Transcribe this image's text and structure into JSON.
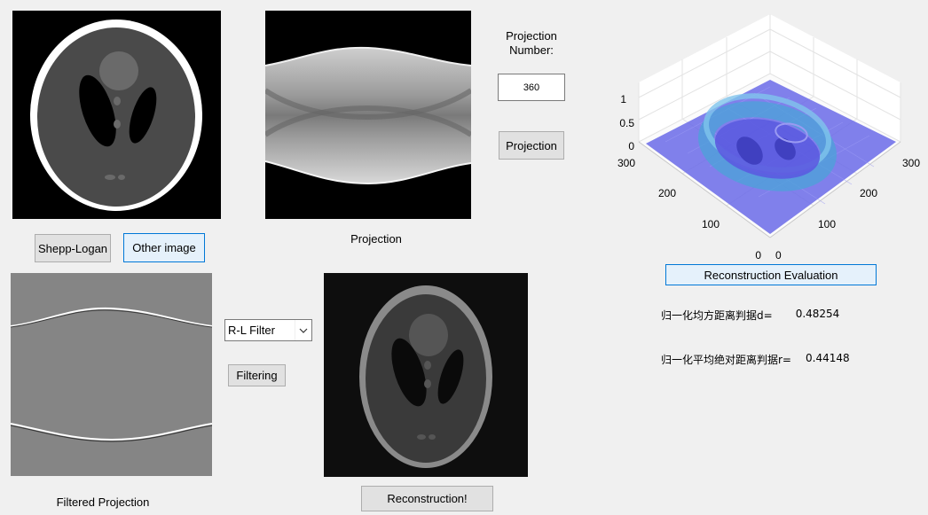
{
  "phantom": {
    "shepp_logan_button": "Shepp-Logan",
    "other_image_button": "Other image"
  },
  "projection": {
    "caption": "Projection",
    "number_label": "Projection\nNumber:",
    "number_value": "360",
    "projection_button": "Projection"
  },
  "filtering": {
    "filter_selected": "R-L Filter",
    "filtering_button": "Filtering",
    "caption": "Filtered Projection"
  },
  "reconstruction": {
    "button": "Reconstruction!"
  },
  "evaluation": {
    "button": "Reconstruction Evaluation",
    "d_label": "归一化均方距离判据d=",
    "d_value": "0.48254",
    "r_label": "归一化平均绝对距离判据r=",
    "r_value": "0.44148"
  },
  "surface_plot": {
    "z_ticks": [
      "1",
      "0.5",
      "0"
    ],
    "left_ticks": [
      "300",
      "200",
      "100",
      "0"
    ],
    "right_ticks": [
      "0",
      "100",
      "200",
      "300"
    ],
    "surface_color": "#6a6ae8"
  }
}
